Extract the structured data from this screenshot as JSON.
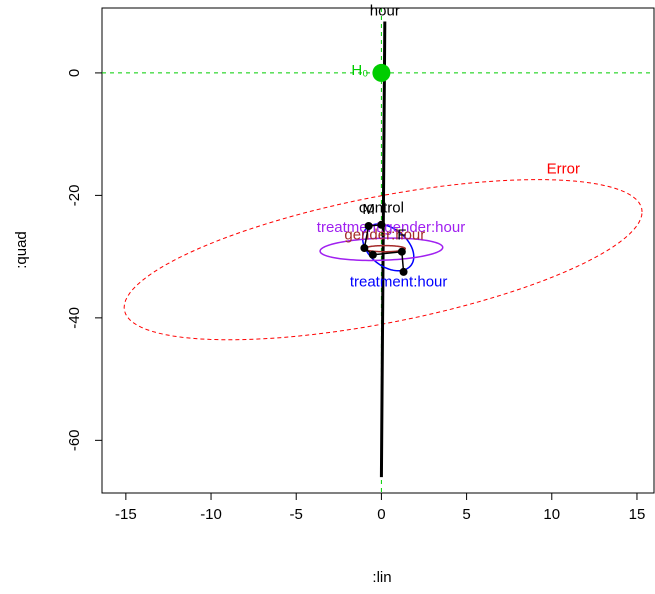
{
  "chart_data": {
    "type": "heplot",
    "xlabel": ":lin",
    "ylabel": ":quad",
    "xlim": [
      -16.4,
      16
    ],
    "ylim": [
      -68.6,
      10.6
    ],
    "xticks": [
      -15,
      -10,
      -5,
      0,
      5,
      10,
      15
    ],
    "yticks": [
      -60,
      -40,
      -20,
      0
    ],
    "h0": {
      "label": "H₀",
      "x": 0,
      "y": 0,
      "color": "#00cd00"
    },
    "ellipses": [
      {
        "name": "Error",
        "color": "#ff0000",
        "dashed": true,
        "width": 1,
        "center": [
          0.1,
          -30.5
        ],
        "u": [
          15.2,
          7.8
        ],
        "v": [
          0,
          10.5
        ],
        "label_pos": "top"
      },
      {
        "name": "hour",
        "color": "#000000",
        "dashed": false,
        "width": 3,
        "center": [
          0.1,
          -28.8
        ],
        "u": [
          0.1,
          37.2
        ],
        "v": [
          0,
          0
        ],
        "label_pos": "top"
      },
      {
        "name": "treatment:hour",
        "color": "#0000ff",
        "dashed": false,
        "width": 1.5,
        "center": [
          0.4,
          -28.5
        ],
        "u": [
          1.5,
          -1.5
        ],
        "v": [
          0,
          3.5
        ],
        "label_pos": "bottom"
      },
      {
        "name": "treatment:gender:hour",
        "color": "#a020f0",
        "dashed": false,
        "width": 1.5,
        "center": [
          0,
          -28.8
        ],
        "u": [
          3.6,
          0.3
        ],
        "v": [
          0,
          1.8
        ],
        "label_pos": "top"
      },
      {
        "name": "gender:hour",
        "color": "#a52a2a",
        "dashed": false,
        "width": 1.5,
        "center": [
          0.2,
          -28.7
        ],
        "u": [
          1.2,
          0
        ],
        "v": [
          0,
          0.5
        ],
        "label_pos": "top"
      }
    ],
    "means": {
      "x": [
        0,
        -0.75,
        -1,
        -0.5,
        1.2,
        1.3
      ],
      "y": [
        -24.8,
        -25,
        -28.6,
        -29.7,
        -29.2,
        -32.5
      ],
      "labels": [
        "control",
        "M",
        null,
        null,
        "F",
        null
      ]
    }
  }
}
